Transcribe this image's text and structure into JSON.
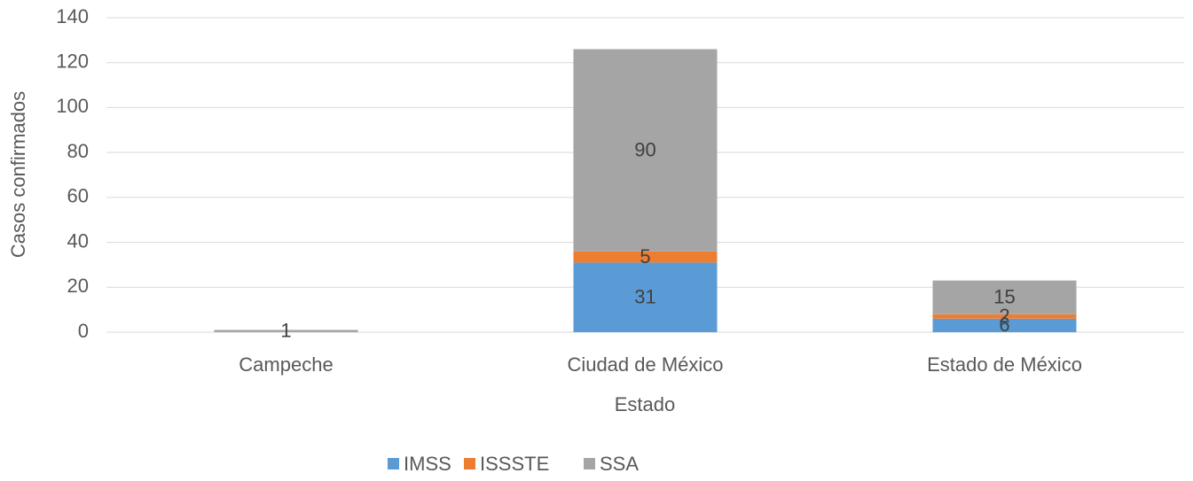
{
  "chart_data": {
    "type": "bar",
    "stacked": true,
    "x_label": "Estado",
    "y_label": "Casos confirmados",
    "categories": [
      "Campeche",
      "Ciudad de México",
      "Estado de México"
    ],
    "series": [
      {
        "name": "IMSS",
        "color": "#5b9bd5",
        "values": [
          null,
          31,
          6
        ]
      },
      {
        "name": "ISSSTE",
        "color": "#ed7d31",
        "values": [
          null,
          5,
          2
        ]
      },
      {
        "name": "SSA",
        "color": "#a5a5a5",
        "values": [
          1,
          90,
          15
        ]
      }
    ],
    "ylim": [
      0,
      140
    ],
    "yticks": [
      0,
      20,
      40,
      60,
      80,
      100,
      120,
      140
    ],
    "grid": true,
    "legend": "bottom"
  }
}
